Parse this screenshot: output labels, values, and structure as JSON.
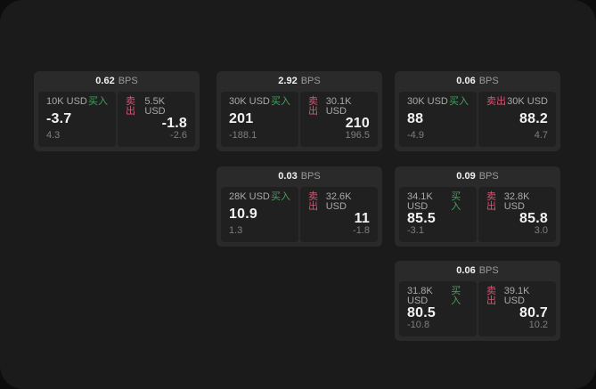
{
  "theme": {
    "panel_bg": "#1b1b1b",
    "card_bg": "#2a2a2a",
    "tile_bg": "#202020",
    "text_primary": "#f2f2f2",
    "text_secondary": "#9a9a9a",
    "text_label": "#a9a9a9",
    "text_muted": "#7f7f7f",
    "buy_color": "#46a05f",
    "sell_color": "#d75573"
  },
  "labels": {
    "bps_unit": "BPS",
    "buy": "买入",
    "sell": "卖出"
  },
  "cards": [
    {
      "bps": "0.62",
      "buy": {
        "notional": "10K USD",
        "price": "-3.7",
        "delta": "4.3"
      },
      "sell": {
        "notional": "5.5K USD",
        "price": "-1.8",
        "delta": "-2.6"
      }
    },
    {
      "bps": "2.92",
      "buy": {
        "notional": "30K USD",
        "price": "201",
        "delta": "-188.1"
      },
      "sell": {
        "notional": "30.1K USD",
        "price": "210",
        "delta": "196.5"
      }
    },
    {
      "bps": "0.06",
      "buy": {
        "notional": "30K USD",
        "price": "88",
        "delta": "-4.9"
      },
      "sell": {
        "notional": "30K USD",
        "price": "88.2",
        "delta": "4.7"
      }
    },
    {
      "bps": "0.03",
      "buy": {
        "notional": "28K USD",
        "price": "10.9",
        "delta": "1.3"
      },
      "sell": {
        "notional": "32.6K USD",
        "price": "11",
        "delta": "-1.8"
      }
    },
    {
      "bps": "0.09",
      "buy": {
        "notional": "34.1K USD",
        "price": "85.5",
        "delta": "-3.1"
      },
      "sell": {
        "notional": "32.8K USD",
        "price": "85.8",
        "delta": "3.0"
      }
    },
    {
      "bps": "0.06",
      "buy": {
        "notional": "31.8K USD",
        "price": "80.5",
        "delta": "-10.8"
      },
      "sell": {
        "notional": "39.1K USD",
        "price": "80.7",
        "delta": "10.2"
      }
    }
  ],
  "card_positions": [
    {
      "col": 0,
      "row": 0
    },
    {
      "col": 1,
      "row": 0
    },
    {
      "col": 2,
      "row": 0
    },
    {
      "col": 1,
      "row": 1
    },
    {
      "col": 2,
      "row": 1
    },
    {
      "col": 2,
      "row": 2
    }
  ]
}
